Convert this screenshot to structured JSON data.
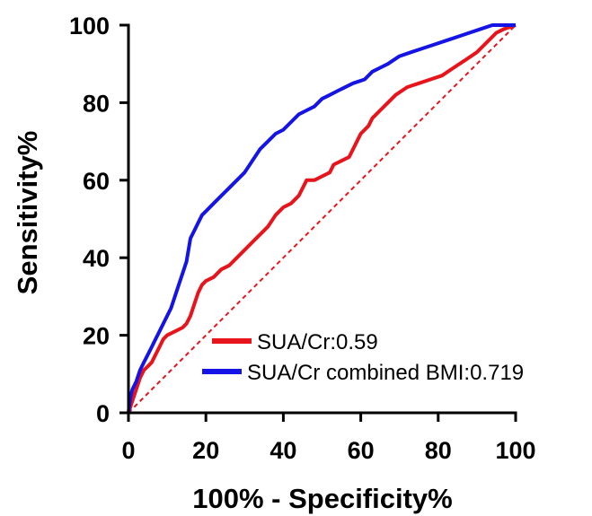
{
  "chart_data": {
    "type": "line",
    "xlabel": "100% - Specificity%",
    "ylabel": "Sensitivity%",
    "xlim": [
      0,
      100
    ],
    "ylim": [
      0,
      100
    ],
    "x_ticks": [
      "0",
      "20",
      "40",
      "60",
      "80",
      "100"
    ],
    "y_ticks": [
      "0",
      "20",
      "40",
      "60",
      "80",
      "100"
    ],
    "grid": false,
    "legend_position": "bottom-right",
    "reference_line": {
      "x": [
        0,
        100
      ],
      "y": [
        0,
        100
      ],
      "style": "dashed",
      "color": "#e8141b"
    },
    "series": [
      {
        "name": "SUA/Cr",
        "auc": "0.59",
        "color": "#e8141b",
        "points": [
          [
            0,
            0
          ],
          [
            1,
            3
          ],
          [
            2,
            6
          ],
          [
            3,
            9
          ],
          [
            4,
            11
          ],
          [
            5,
            12
          ],
          [
            6,
            13
          ],
          [
            7,
            15
          ],
          [
            8,
            17
          ],
          [
            9,
            19
          ],
          [
            10,
            20
          ],
          [
            12,
            21
          ],
          [
            14,
            22
          ],
          [
            15,
            23
          ],
          [
            16,
            25
          ],
          [
            17,
            28
          ],
          [
            18,
            31
          ],
          [
            19,
            33
          ],
          [
            20,
            34
          ],
          [
            22,
            35
          ],
          [
            24,
            37
          ],
          [
            26,
            38
          ],
          [
            28,
            40
          ],
          [
            30,
            42
          ],
          [
            32,
            44
          ],
          [
            34,
            46
          ],
          [
            36,
            48
          ],
          [
            38,
            51
          ],
          [
            40,
            53
          ],
          [
            42,
            54
          ],
          [
            44,
            56
          ],
          [
            45,
            58
          ],
          [
            46,
            60
          ],
          [
            48,
            60
          ],
          [
            50,
            61
          ],
          [
            52,
            62
          ],
          [
            53,
            64
          ],
          [
            55,
            65
          ],
          [
            57,
            66
          ],
          [
            58,
            68
          ],
          [
            59,
            70
          ],
          [
            60,
            72
          ],
          [
            62,
            74
          ],
          [
            63,
            76
          ],
          [
            65,
            78
          ],
          [
            67,
            80
          ],
          [
            69,
            82
          ],
          [
            72,
            84
          ],
          [
            75,
            85
          ],
          [
            78,
            86
          ],
          [
            81,
            87
          ],
          [
            84,
            89
          ],
          [
            87,
            91
          ],
          [
            90,
            93
          ],
          [
            93,
            96
          ],
          [
            95,
            98
          ],
          [
            97,
            99
          ],
          [
            100,
            100
          ]
        ]
      },
      {
        "name": "SUA/Cr combined BMI",
        "auc": "0.719",
        "color": "#1414e6",
        "points": [
          [
            0,
            0
          ],
          [
            0.5,
            4
          ],
          [
            1,
            6
          ],
          [
            2,
            8
          ],
          [
            3,
            11
          ],
          [
            4,
            13
          ],
          [
            5,
            15
          ],
          [
            6,
            17
          ],
          [
            7,
            19
          ],
          [
            8,
            21
          ],
          [
            9,
            23
          ],
          [
            10,
            25
          ],
          [
            11,
            27
          ],
          [
            12,
            30
          ],
          [
            13,
            33
          ],
          [
            14,
            36
          ],
          [
            15,
            39
          ],
          [
            15.5,
            42
          ],
          [
            16,
            45
          ],
          [
            17,
            47
          ],
          [
            18,
            49
          ],
          [
            19,
            51
          ],
          [
            20,
            52
          ],
          [
            22,
            54
          ],
          [
            24,
            56
          ],
          [
            26,
            58
          ],
          [
            28,
            60
          ],
          [
            30,
            62
          ],
          [
            32,
            65
          ],
          [
            34,
            68
          ],
          [
            36,
            70
          ],
          [
            38,
            72
          ],
          [
            40,
            73
          ],
          [
            42,
            75
          ],
          [
            44,
            77
          ],
          [
            46,
            78
          ],
          [
            48,
            79
          ],
          [
            50,
            81
          ],
          [
            52,
            82
          ],
          [
            54,
            83
          ],
          [
            56,
            84
          ],
          [
            58,
            85
          ],
          [
            61,
            86
          ],
          [
            63,
            88
          ],
          [
            65,
            89
          ],
          [
            67,
            90
          ],
          [
            70,
            92
          ],
          [
            73,
            93
          ],
          [
            76,
            94
          ],
          [
            79,
            95
          ],
          [
            82,
            96
          ],
          [
            85,
            97
          ],
          [
            88,
            98
          ],
          [
            91,
            99
          ],
          [
            94,
            100
          ],
          [
            97,
            100
          ],
          [
            100,
            100
          ]
        ]
      }
    ]
  }
}
